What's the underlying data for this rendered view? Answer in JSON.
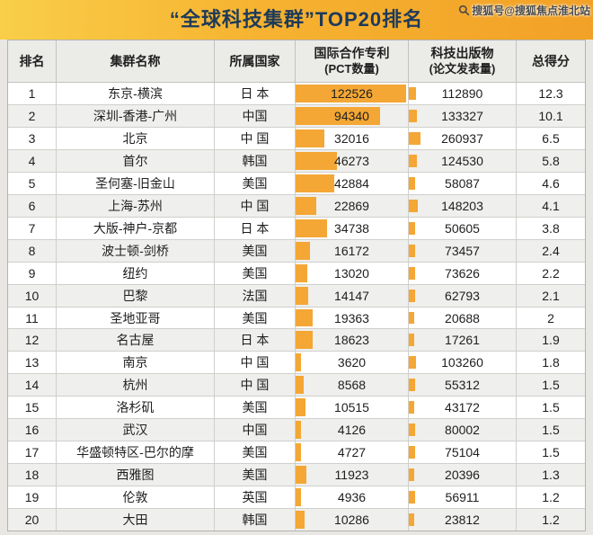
{
  "title": "“全球科技集群”TOP20排名",
  "watermark": {
    "icon": "search-icon",
    "text": "搜狐号@搜狐焦点淮北站"
  },
  "colors": {
    "accent_bar": "#F4A735",
    "title_bg_left": "#F9CE49",
    "title_bg_right": "#F2A127",
    "title_text": "#1D3A5A",
    "row_alt": "#EFEFED",
    "border": "#CFCFCC"
  },
  "chart_data": {
    "type": "table",
    "title": "“全球科技集群”TOP20排名",
    "headers": [
      {
        "label": "排名",
        "sub": ""
      },
      {
        "label": "集群名称",
        "sub": ""
      },
      {
        "label": "所属国家",
        "sub": ""
      },
      {
        "label": "国际合作专利",
        "sub": "(PCT数量)"
      },
      {
        "label": "科技出版物",
        "sub": "(论文发表量)"
      },
      {
        "label": "总得分",
        "sub": ""
      }
    ],
    "pct_axis_max": 125000,
    "pub_axis_max": 260937,
    "rows": [
      {
        "rank": "1",
        "name": "东京-横滨",
        "country": "日 本",
        "pct": 122526,
        "pub": 112890,
        "score": "12.3"
      },
      {
        "rank": "2",
        "name": "深圳-香港-广州",
        "country": "中国",
        "pct": 94340,
        "pub": 133327,
        "score": "10.1"
      },
      {
        "rank": "3",
        "name": "北京",
        "country": "中 国",
        "pct": 32016,
        "pub": 260937,
        "score": "6.5"
      },
      {
        "rank": "4",
        "name": "首尔",
        "country": "韩国",
        "pct": 46273,
        "pub": 124530,
        "score": "5.8"
      },
      {
        "rank": "5",
        "name": "圣何塞-旧金山",
        "country": "美国",
        "pct": 42884,
        "pub": 58087,
        "score": "4.6"
      },
      {
        "rank": "6",
        "name": "上海-苏州",
        "country": "中 国",
        "pct": 22869,
        "pub": 148203,
        "score": "4.1"
      },
      {
        "rank": "7",
        "name": "大版-神户-京都",
        "country": "日 本",
        "pct": 34738,
        "pub": 50605,
        "score": "3.8"
      },
      {
        "rank": "8",
        "name": "波士顿-剑桥",
        "country": "美国",
        "pct": 16172,
        "pub": 73457,
        "score": "2.4"
      },
      {
        "rank": "9",
        "name": "纽约",
        "country": "美国",
        "pct": 13020,
        "pub": 73626,
        "score": "2.2"
      },
      {
        "rank": "10",
        "name": "巴黎",
        "country": "法国",
        "pct": 14147,
        "pub": 62793,
        "score": "2.1"
      },
      {
        "rank": "11",
        "name": "圣地亚哥",
        "country": "美国",
        "pct": 19363,
        "pub": 20688,
        "score": "2"
      },
      {
        "rank": "12",
        "name": "名古屋",
        "country": "日 本",
        "pct": 18623,
        "pub": 17261,
        "score": "1.9"
      },
      {
        "rank": "13",
        "name": "南京",
        "country": "中 国",
        "pct": 3620,
        "pub": 103260,
        "score": "1.8"
      },
      {
        "rank": "14",
        "name": "杭州",
        "country": "中 国",
        "pct": 8568,
        "pub": 55312,
        "score": "1.5"
      },
      {
        "rank": "15",
        "name": "洛杉矶",
        "country": "美国",
        "pct": 10515,
        "pub": 43172,
        "score": "1.5"
      },
      {
        "rank": "16",
        "name": "武汉",
        "country": "中国",
        "pct": 4126,
        "pub": 80002,
        "score": "1.5"
      },
      {
        "rank": "17",
        "name": "华盛顿特区-巴尔的摩",
        "country": "美国",
        "pct": 4727,
        "pub": 75104,
        "score": "1.5"
      },
      {
        "rank": "18",
        "name": "西雅图",
        "country": "美国",
        "pct": 11923,
        "pub": 20396,
        "score": "1.3"
      },
      {
        "rank": "19",
        "name": "伦敦",
        "country": "英国",
        "pct": 4936,
        "pub": 56911,
        "score": "1.2"
      },
      {
        "rank": "20",
        "name": "大田",
        "country": "韩国",
        "pct": 10286,
        "pub": 23812,
        "score": "1.2"
      }
    ]
  }
}
